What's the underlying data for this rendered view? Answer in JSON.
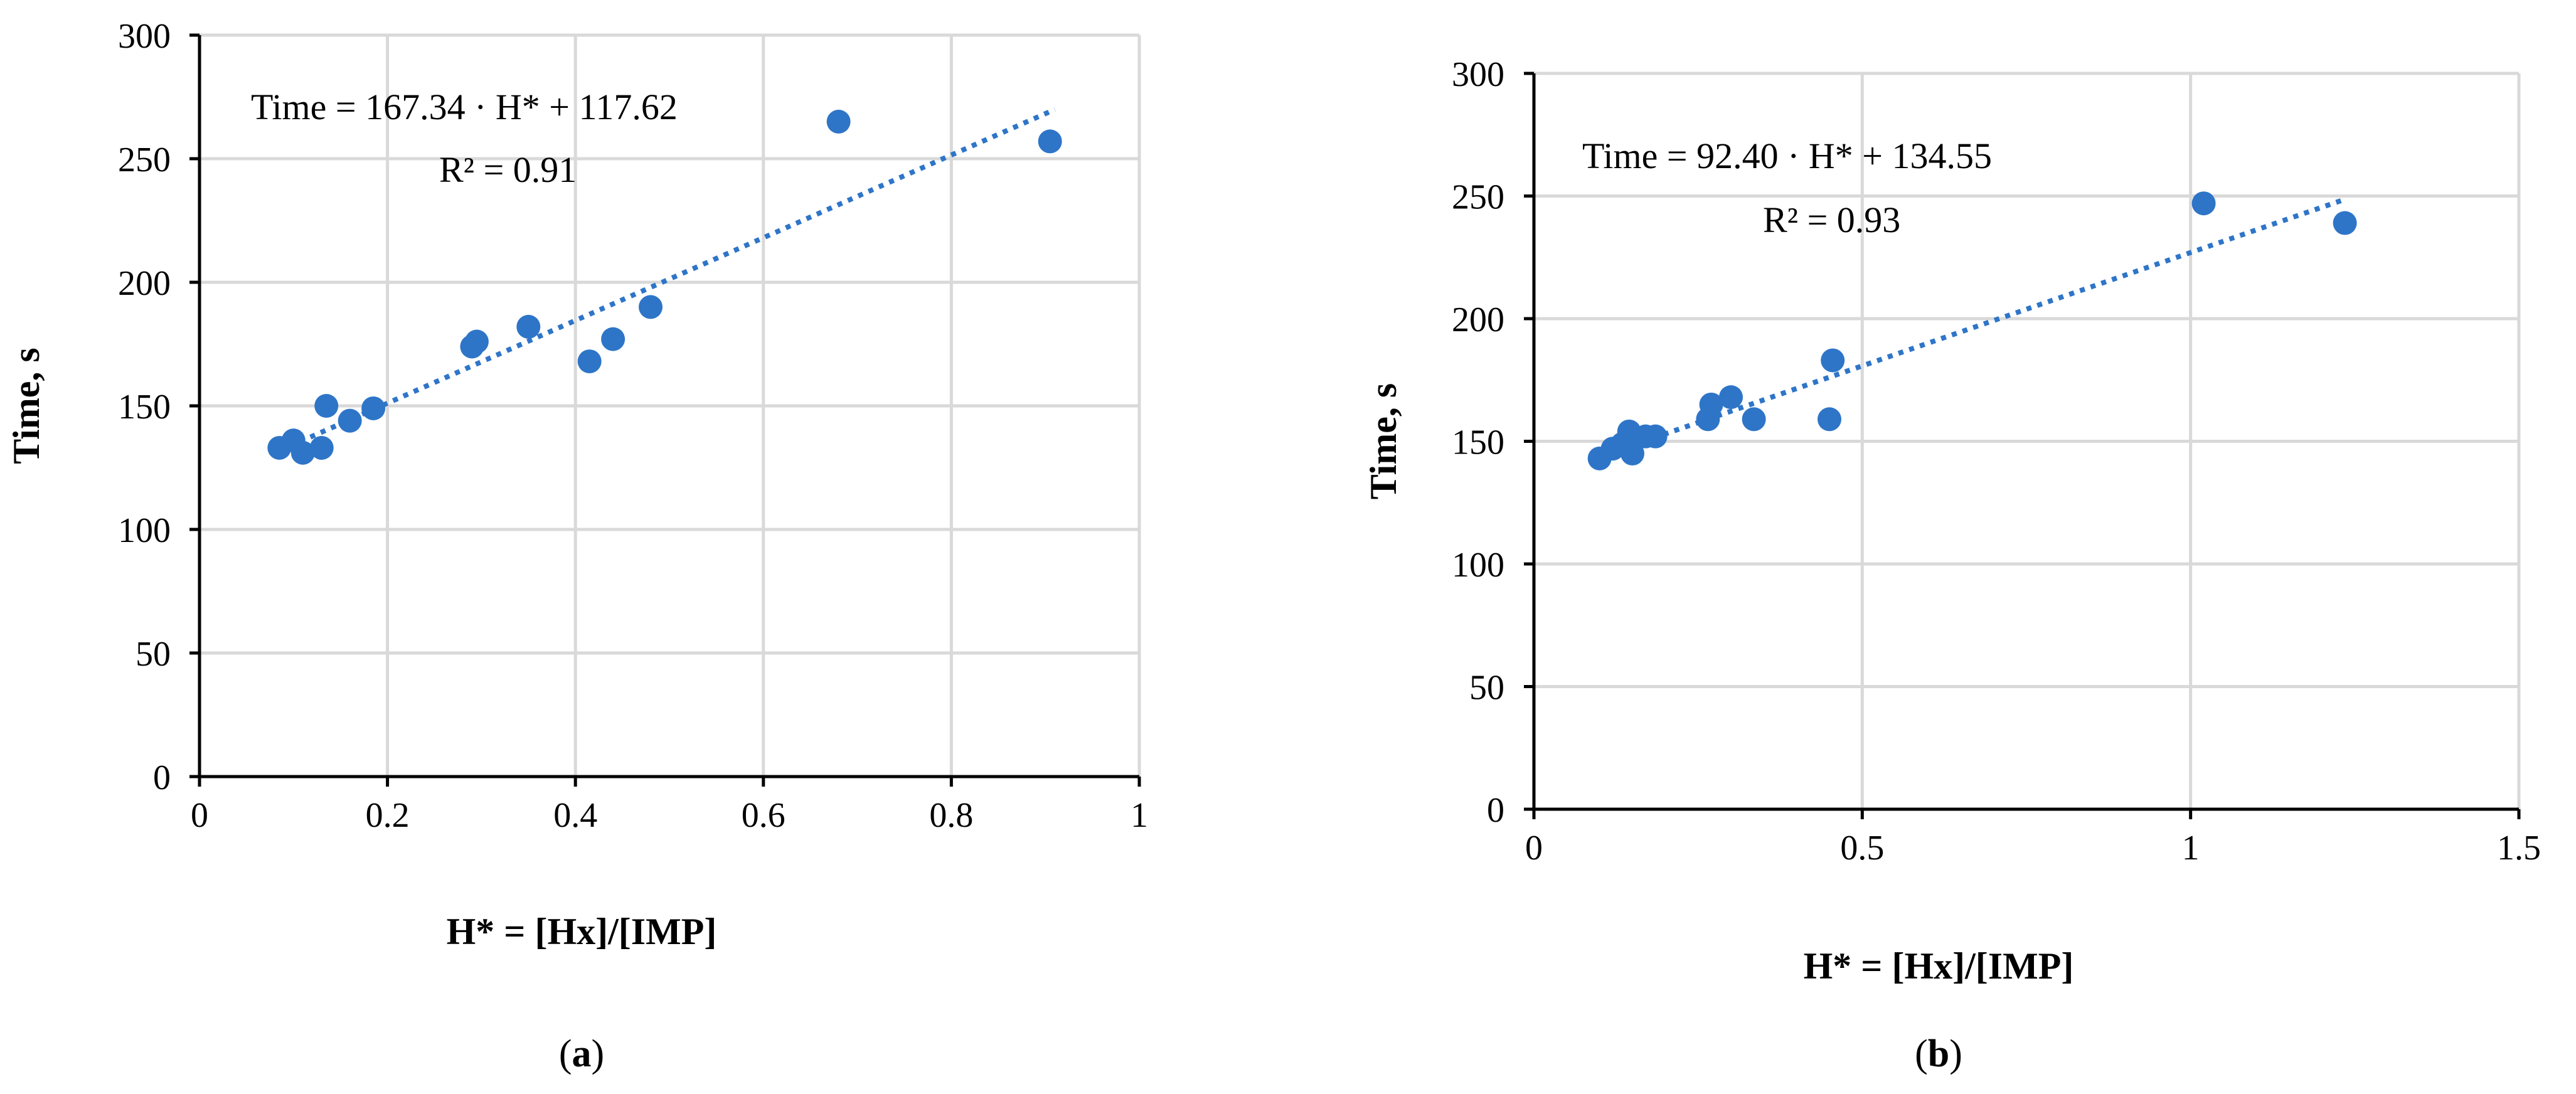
{
  "colors": {
    "marker": "#2e75c8",
    "trendline": "#2e75c8",
    "grid": "#d9d9d9",
    "axis": "#000000"
  },
  "chart_data": [
    {
      "type": "scatter",
      "panel_label": "a",
      "xlabel": "H* = [Hx]/[IMP]",
      "ylabel": "Time, s",
      "xlim": [
        0,
        1
      ],
      "ylim": [
        0,
        300
      ],
      "xticks": [
        0,
        0.2,
        0.4,
        0.6,
        0.8,
        1
      ],
      "xtick_labels": [
        "0",
        "0.2",
        "0.4",
        "0.6",
        "0.8",
        "1"
      ],
      "yticks": [
        0,
        50,
        100,
        150,
        200,
        250,
        300
      ],
      "ytick_labels": [
        "0",
        "50",
        "100",
        "150",
        "200",
        "250",
        "300"
      ],
      "grid": true,
      "equation": "Time = 167.34 · H* + 117.62",
      "r_squared": "R² = 0.91",
      "trendline": {
        "slope": 167.34,
        "intercept": 117.62,
        "x_range": [
          0.085,
          0.91
        ]
      },
      "points": [
        {
          "x": 0.085,
          "y": 133
        },
        {
          "x": 0.1,
          "y": 136
        },
        {
          "x": 0.11,
          "y": 131
        },
        {
          "x": 0.13,
          "y": 133
        },
        {
          "x": 0.135,
          "y": 150
        },
        {
          "x": 0.16,
          "y": 144
        },
        {
          "x": 0.185,
          "y": 149
        },
        {
          "x": 0.29,
          "y": 174
        },
        {
          "x": 0.295,
          "y": 176
        },
        {
          "x": 0.35,
          "y": 182
        },
        {
          "x": 0.415,
          "y": 168
        },
        {
          "x": 0.44,
          "y": 177
        },
        {
          "x": 0.48,
          "y": 190
        },
        {
          "x": 0.68,
          "y": 265
        },
        {
          "x": 0.905,
          "y": 257
        }
      ]
    },
    {
      "type": "scatter",
      "panel_label": "b",
      "xlabel": "H* = [Hx]/[IMP]",
      "ylabel": "Time, s",
      "xlim": [
        0,
        1.5
      ],
      "ylim": [
        0,
        300
      ],
      "xticks": [
        0,
        0.5,
        1,
        1.5
      ],
      "xtick_labels": [
        "0",
        "0.5",
        "1",
        "1.5"
      ],
      "yticks": [
        0,
        50,
        100,
        150,
        200,
        250,
        300
      ],
      "ytick_labels": [
        "0",
        "50",
        "100",
        "150",
        "200",
        "250",
        "300"
      ],
      "grid": true,
      "equation": "Time = 92.40 · H* + 134.55",
      "r_squared": "R² = 0.93",
      "trendline": {
        "slope": 92.4,
        "intercept": 134.55,
        "x_range": [
          0.1,
          1.23
        ]
      },
      "points": [
        {
          "x": 0.1,
          "y": 143
        },
        {
          "x": 0.12,
          "y": 147
        },
        {
          "x": 0.135,
          "y": 149
        },
        {
          "x": 0.145,
          "y": 154
        },
        {
          "x": 0.15,
          "y": 145
        },
        {
          "x": 0.17,
          "y": 152
        },
        {
          "x": 0.185,
          "y": 152
        },
        {
          "x": 0.265,
          "y": 159
        },
        {
          "x": 0.27,
          "y": 165
        },
        {
          "x": 0.3,
          "y": 168
        },
        {
          "x": 0.335,
          "y": 159
        },
        {
          "x": 0.45,
          "y": 159
        },
        {
          "x": 0.455,
          "y": 183
        },
        {
          "x": 1.02,
          "y": 247
        },
        {
          "x": 1.235,
          "y": 239
        }
      ]
    }
  ]
}
